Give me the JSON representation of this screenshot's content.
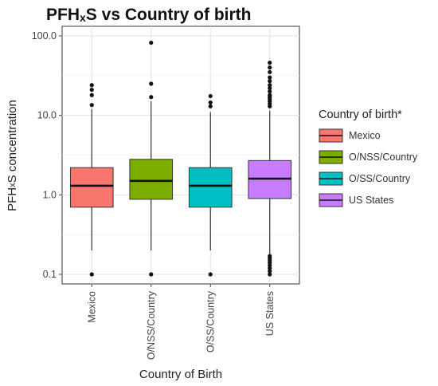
{
  "chart_data": {
    "type": "box",
    "title": "PFHxS vs Country of birth",
    "title_parts": [
      "PFH",
      "x",
      "S vs Country of birth"
    ],
    "xlabel": "Country of Birth",
    "ylabel": "PFHxS concentration",
    "ylabel_parts": [
      "PFH",
      "x",
      "S concentration"
    ],
    "y_scale": "log10",
    "ylim": [
      0.1,
      100
    ],
    "y_ticks": [
      0.1,
      1.0,
      10.0,
      100.0
    ],
    "y_tick_labels": [
      "0.1",
      "1.0",
      "10.0",
      "100.0"
    ],
    "grid": true,
    "legend": {
      "title": "Country of birth*",
      "position": "right"
    },
    "categories": [
      "Mexico",
      "O/NSS/Country",
      "O/SS/Country",
      "US States"
    ],
    "series": [
      {
        "name": "Mexico",
        "color": "#F8766D",
        "q1": 0.7,
        "median": 1.3,
        "q3": 2.2,
        "whisker_low": 0.2,
        "whisker_high": 12,
        "outliers": [
          0.1,
          13.5,
          18,
          21,
          24
        ]
      },
      {
        "name": "O/NSS/Country",
        "color": "#7CAE00",
        "q1": 0.88,
        "median": 1.5,
        "q3": 2.8,
        "whisker_low": 0.2,
        "whisker_high": 15,
        "outliers": [
          0.1,
          17,
          25,
          82
        ]
      },
      {
        "name": "O/SS/Country",
        "color": "#00BFC4",
        "q1": 0.7,
        "median": 1.3,
        "q3": 2.2,
        "whisker_low": 0.2,
        "whisker_high": 11,
        "outliers": [
          0.1,
          13,
          14.5,
          17.5
        ]
      },
      {
        "name": "US States",
        "color": "#C77CFF",
        "q1": 0.9,
        "median": 1.6,
        "q3": 2.7,
        "whisker_low": 0.18,
        "whisker_high": 11.5,
        "outliers": [
          0.1,
          0.11,
          0.12,
          0.13,
          0.14,
          0.15,
          0.16,
          0.17,
          13,
          14,
          15,
          16,
          17,
          18,
          20,
          22,
          24,
          27,
          30,
          35,
          40,
          46
        ]
      }
    ]
  }
}
